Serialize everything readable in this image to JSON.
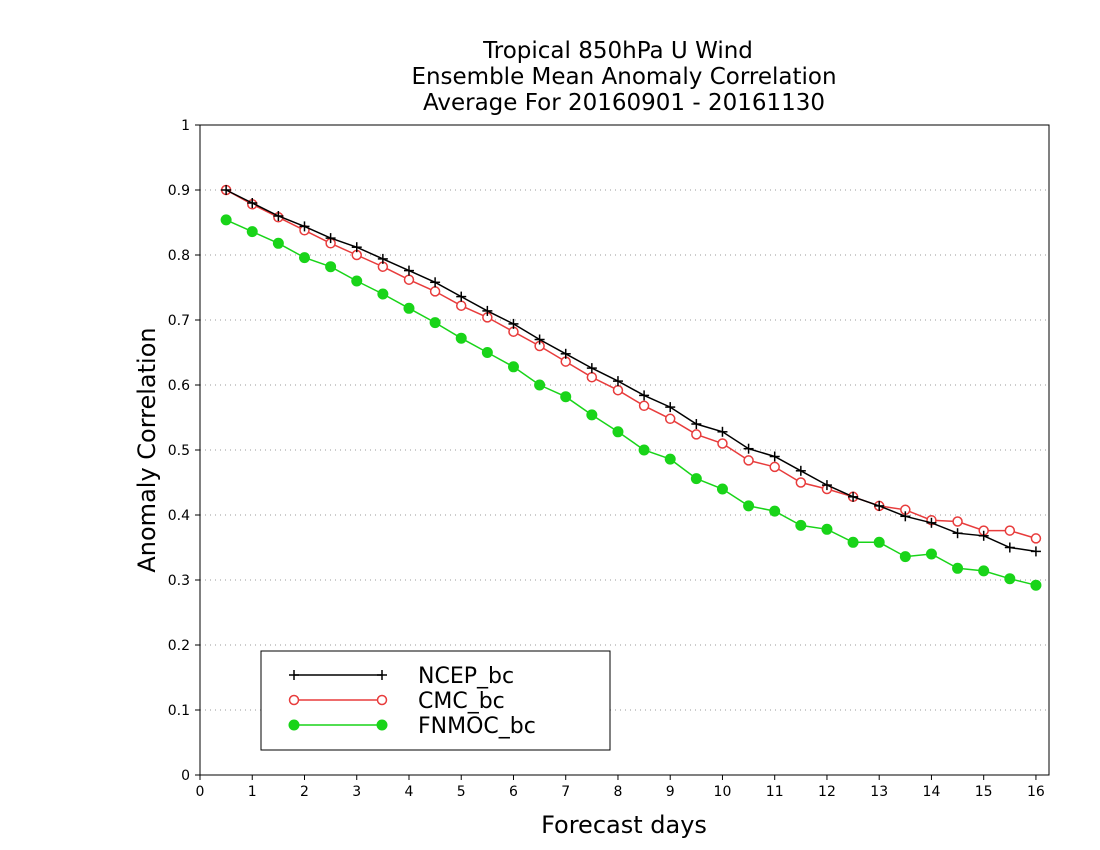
{
  "chart_data": {
    "type": "line",
    "title_lines": [
      "Tropical 850hPa U Wind",
      "Ensemble Mean Anomaly Correlation",
      "Average For 20160901 - 20161130"
    ],
    "xlabel": "Forecast days",
    "ylabel": "Anomaly Correlation",
    "xlim": [
      0,
      16.25
    ],
    "ylim": [
      0,
      1
    ],
    "xticks": [
      "0",
      "1",
      "2",
      "3",
      "4",
      "5",
      "6",
      "7",
      "8",
      "9",
      "10",
      "11",
      "12",
      "13",
      "14",
      "15",
      "16"
    ],
    "yticks": [
      "0",
      "0.1",
      "0.2",
      "0.3",
      "0.4",
      "0.5",
      "0.6",
      "0.7",
      "0.8",
      "0.9",
      "1"
    ],
    "grid": true,
    "legend_position": "bottom-left",
    "x": [
      0.5,
      1,
      1.5,
      2,
      2.5,
      3,
      3.5,
      4,
      4.5,
      5,
      5.5,
      6,
      6.5,
      7,
      7.5,
      8,
      8.5,
      9,
      9.5,
      10,
      10.5,
      11,
      11.5,
      12,
      12.5,
      13,
      13.5,
      14,
      14.5,
      15,
      15.5,
      16
    ],
    "series": [
      {
        "name": "NCEP_bc",
        "color": "#000000",
        "marker": "plus",
        "values": [
          0.9,
          0.88,
          0.86,
          0.844,
          0.826,
          0.812,
          0.794,
          0.776,
          0.758,
          0.736,
          0.714,
          0.694,
          0.67,
          0.648,
          0.626,
          0.606,
          0.584,
          0.566,
          0.54,
          0.528,
          0.502,
          0.49,
          0.468,
          0.446,
          0.428,
          0.414,
          0.398,
          0.388,
          0.372,
          0.368,
          0.35,
          0.344
        ]
      },
      {
        "name": "CMC_bc",
        "color": "#e83c3c",
        "marker": "open-circle",
        "values": [
          0.9,
          0.878,
          0.858,
          0.838,
          0.818,
          0.8,
          0.782,
          0.762,
          0.744,
          0.722,
          0.704,
          0.682,
          0.66,
          0.636,
          0.612,
          0.592,
          0.568,
          0.548,
          0.524,
          0.51,
          0.484,
          0.474,
          0.45,
          0.44,
          0.428,
          0.414,
          0.408,
          0.392,
          0.39,
          0.376,
          0.376,
          0.364
        ]
      },
      {
        "name": "FNMOC_bc",
        "color": "#19d419",
        "marker": "filled-circle",
        "values": [
          0.854,
          0.836,
          0.818,
          0.796,
          0.782,
          0.76,
          0.74,
          0.718,
          0.696,
          0.672,
          0.65,
          0.628,
          0.6,
          0.582,
          0.554,
          0.528,
          0.5,
          0.486,
          0.456,
          0.44,
          0.414,
          0.406,
          0.384,
          0.378,
          0.358,
          0.358,
          0.336,
          0.34,
          0.318,
          0.314,
          0.302,
          0.292
        ]
      }
    ]
  }
}
